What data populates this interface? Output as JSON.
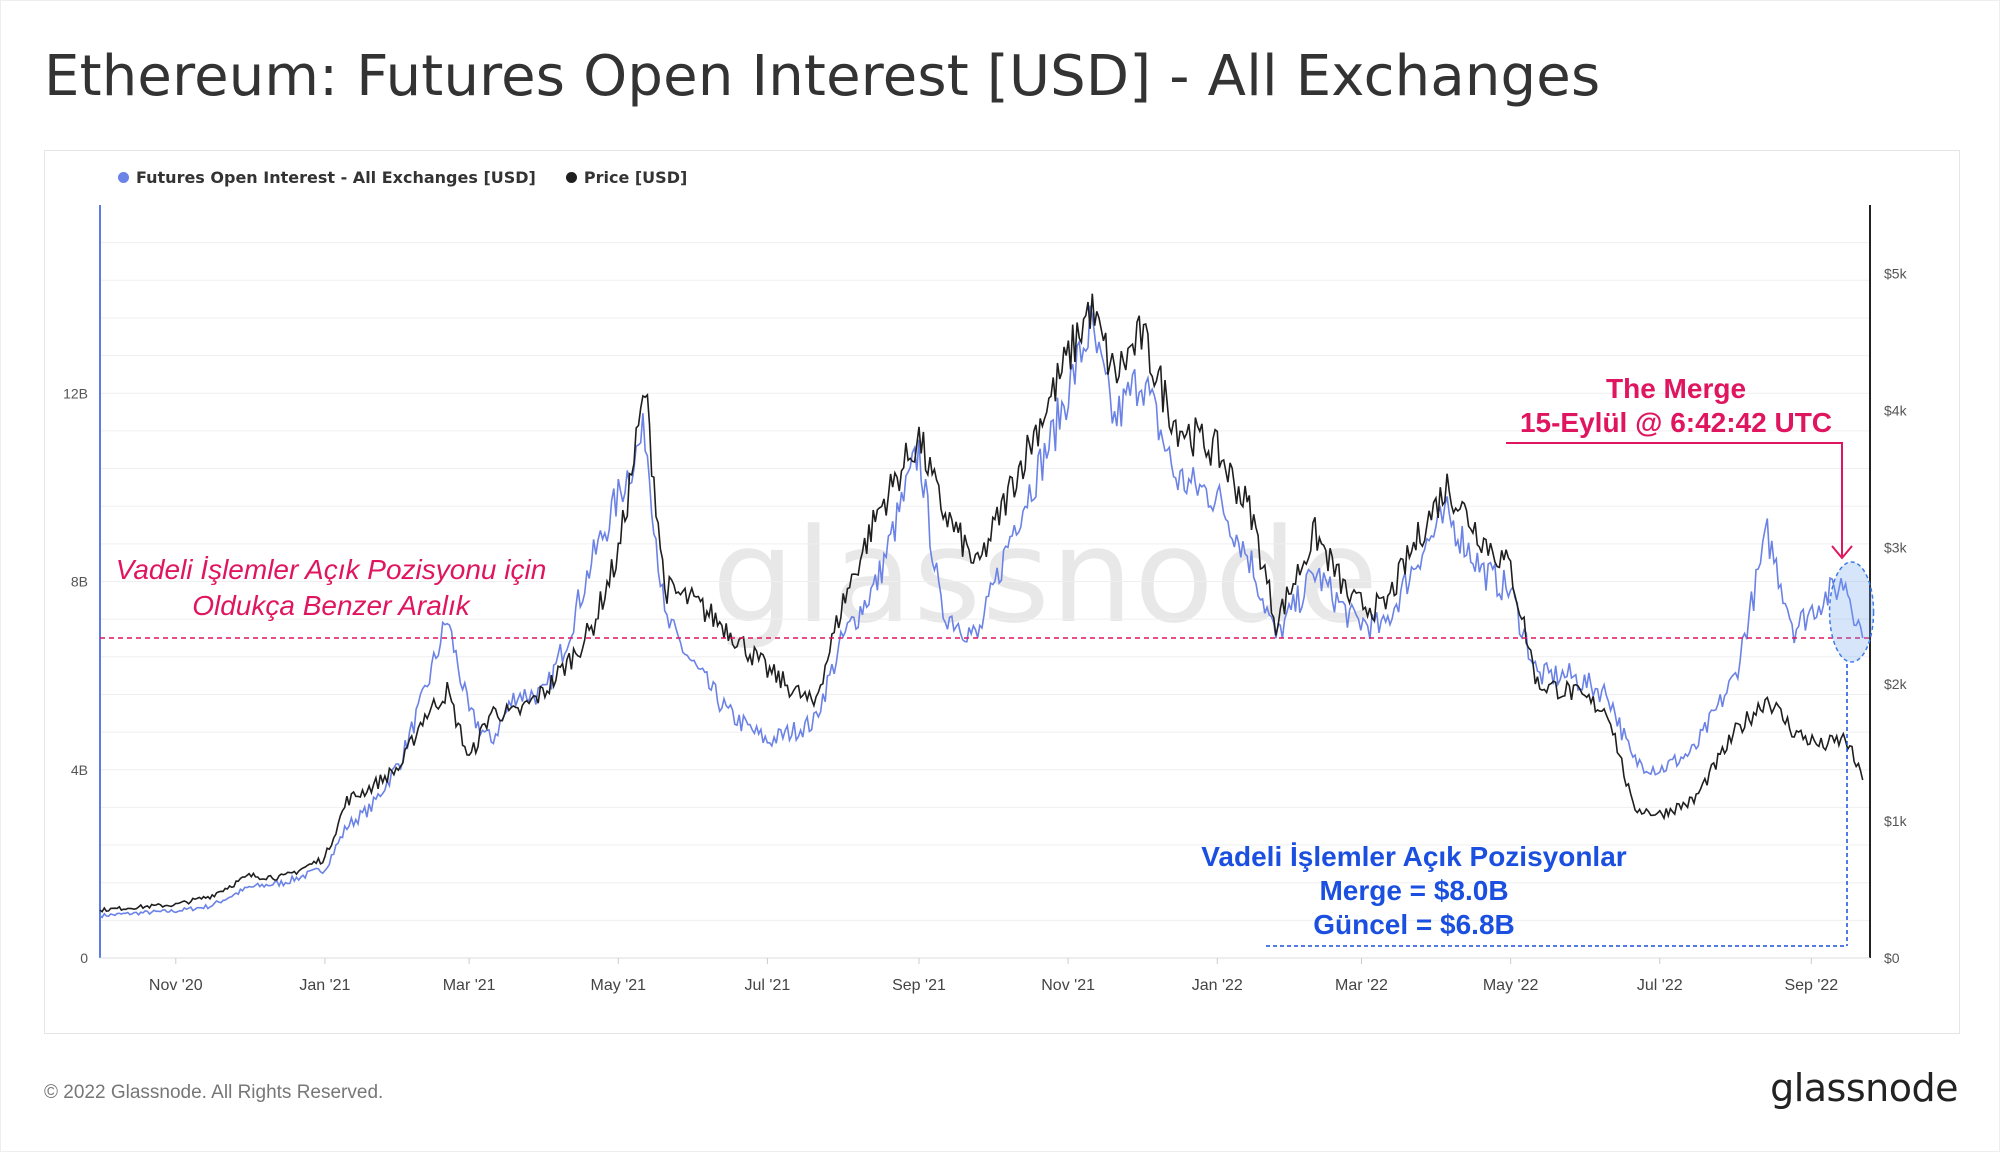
{
  "title": "Ethereum: Futures Open Interest [USD] - All Exchanges",
  "legend": [
    {
      "label": "Futures Open Interest - All Exchanges [USD]",
      "color": "#6b82e6"
    },
    {
      "label": "Price [USD]",
      "color": "#1f1f1f"
    }
  ],
  "watermark": "glassnode",
  "footer": {
    "copyright": "© 2022 Glassnode. All Rights Reserved.",
    "logo": "glassnode"
  },
  "annotations": {
    "range_line1": "Vadeli İşlemler Açık Pozisyonu için",
    "range_line2": "Oldukça Benzer Aralık",
    "merge_line1": "The Merge",
    "merge_line2": "15-Eylül @ 6:42:42 UTC",
    "oi_line1": "Vadeli İşlemler Açık Pozisyonlar",
    "oi_line2": "Merge = $8.0B",
    "oi_line3": "Güncel = $6.8B"
  },
  "chart_data": {
    "type": "line",
    "x_ticks": [
      "Nov '20",
      "Jan '21",
      "Mar '21",
      "May '21",
      "Jul '21",
      "Sep '21",
      "Nov '21",
      "Jan '22",
      "Mar '22",
      "May '22",
      "Jul '22",
      "Sep '22"
    ],
    "y_left_ticks": [
      "0",
      "4B",
      "8B",
      "12B"
    ],
    "y_right_ticks": [
      "$0",
      "$1k",
      "$2k",
      "$3k",
      "$4k",
      "$5k"
    ],
    "y_left_range": [
      0,
      16000000000
    ],
    "y_right_range": [
      0,
      5500
    ],
    "reference_line_oi": 6800000000,
    "merge_date": "2022-09-15",
    "series": [
      {
        "name": "Futures Open Interest - All Exchanges [USD]",
        "axis": "left",
        "color": "#6b82e6",
        "points": [
          [
            "2020-10-01",
            900000000.0
          ],
          [
            "2020-10-15",
            950000000.0
          ],
          [
            "2020-11-01",
            1000000000.0
          ],
          [
            "2020-11-15",
            1100000000.0
          ],
          [
            "2020-12-01",
            1500000000.0
          ],
          [
            "2020-12-15",
            1600000000.0
          ],
          [
            "2021-01-01",
            1900000000.0
          ],
          [
            "2021-01-10",
            2800000000.0
          ],
          [
            "2021-01-20",
            3200000000.0
          ],
          [
            "2021-02-01",
            4200000000.0
          ],
          [
            "2021-02-10",
            5500000000.0
          ],
          [
            "2021-02-20",
            7200000000.0
          ],
          [
            "2021-03-01",
            5200000000.0
          ],
          [
            "2021-03-10",
            4600000000.0
          ],
          [
            "2021-03-20",
            5600000000.0
          ],
          [
            "2021-04-01",
            5600000000.0
          ],
          [
            "2021-04-10",
            6800000000.0
          ],
          [
            "2021-04-20",
            8400000000.0
          ],
          [
            "2021-05-01",
            9800000000.0
          ],
          [
            "2021-05-12",
            11200000000.0
          ],
          [
            "2021-05-20",
            7200000000.0
          ],
          [
            "2021-06-01",
            6200000000.0
          ],
          [
            "2021-06-15",
            5200000000.0
          ],
          [
            "2021-07-01",
            4600000000.0
          ],
          [
            "2021-07-20",
            5000000000.0
          ],
          [
            "2021-08-01",
            6800000000.0
          ],
          [
            "2021-08-15",
            8000000000.0
          ],
          [
            "2021-09-01",
            10800000000.0
          ],
          [
            "2021-09-10",
            7400000000.0
          ],
          [
            "2021-09-25",
            6800000000.0
          ],
          [
            "2021-10-10",
            9200000000.0
          ],
          [
            "2021-10-25",
            11000000000.0
          ],
          [
            "2021-11-10",
            13400000000.0
          ],
          [
            "2021-11-20",
            11400000000.0
          ],
          [
            "2021-12-01",
            12400000000.0
          ],
          [
            "2021-12-15",
            10200000000.0
          ],
          [
            "2022-01-01",
            9800000000.0
          ],
          [
            "2022-01-15",
            8400000000.0
          ],
          [
            "2022-01-25",
            6800000000.0
          ],
          [
            "2022-02-10",
            8200000000.0
          ],
          [
            "2022-02-25",
            7200000000.0
          ],
          [
            "2022-03-10",
            7000000000.0
          ],
          [
            "2022-03-25",
            8600000000.0
          ],
          [
            "2022-04-05",
            9400000000.0
          ],
          [
            "2022-04-20",
            8200000000.0
          ],
          [
            "2022-05-01",
            7800000000.0
          ],
          [
            "2022-05-12",
            6000000000.0
          ],
          [
            "2022-05-25",
            6000000000.0
          ],
          [
            "2022-06-10",
            5600000000.0
          ],
          [
            "2022-06-20",
            4200000000.0
          ],
          [
            "2022-07-01",
            4000000000.0
          ],
          [
            "2022-07-15",
            4400000000.0
          ],
          [
            "2022-08-01",
            6000000000.0
          ],
          [
            "2022-08-14",
            9000000000.0
          ],
          [
            "2022-08-25",
            7000000000.0
          ],
          [
            "2022-09-05",
            7600000000.0
          ],
          [
            "2022-09-15",
            8000000000.0
          ],
          [
            "2022-09-22",
            6800000000.0
          ]
        ]
      },
      {
        "name": "Price [USD]",
        "axis": "right",
        "color": "#1f1f1f",
        "points": [
          [
            "2020-10-01",
            350
          ],
          [
            "2020-10-15",
            370
          ],
          [
            "2020-11-01",
            390
          ],
          [
            "2020-11-15",
            450
          ],
          [
            "2020-12-01",
            600
          ],
          [
            "2020-12-15",
            590
          ],
          [
            "2021-01-01",
            730
          ],
          [
            "2021-01-10",
            1150
          ],
          [
            "2021-01-20",
            1250
          ],
          [
            "2021-02-01",
            1400
          ],
          [
            "2021-02-10",
            1750
          ],
          [
            "2021-02-20",
            1950
          ],
          [
            "2021-03-01",
            1450
          ],
          [
            "2021-03-10",
            1800
          ],
          [
            "2021-03-20",
            1780
          ],
          [
            "2021-04-01",
            1950
          ],
          [
            "2021-04-10",
            2150
          ],
          [
            "2021-04-20",
            2400
          ],
          [
            "2021-05-01",
            2950
          ],
          [
            "2021-05-12",
            4150
          ],
          [
            "2021-05-20",
            2700
          ],
          [
            "2021-06-01",
            2600
          ],
          [
            "2021-06-15",
            2400
          ],
          [
            "2021-07-01",
            2100
          ],
          [
            "2021-07-20",
            1850
          ],
          [
            "2021-08-01",
            2600
          ],
          [
            "2021-08-15",
            3250
          ],
          [
            "2021-09-01",
            3800
          ],
          [
            "2021-09-10",
            3300
          ],
          [
            "2021-09-25",
            2850
          ],
          [
            "2021-10-10",
            3500
          ],
          [
            "2021-10-25",
            4100
          ],
          [
            "2021-11-10",
            4750
          ],
          [
            "2021-11-20",
            4250
          ],
          [
            "2021-12-01",
            4550
          ],
          [
            "2021-12-15",
            3900
          ],
          [
            "2022-01-01",
            3700
          ],
          [
            "2022-01-15",
            3250
          ],
          [
            "2022-01-25",
            2450
          ],
          [
            "2022-02-10",
            3100
          ],
          [
            "2022-02-25",
            2600
          ],
          [
            "2022-03-10",
            2550
          ],
          [
            "2022-03-25",
            3100
          ],
          [
            "2022-04-05",
            3450
          ],
          [
            "2022-04-20",
            3050
          ],
          [
            "2022-05-01",
            2850
          ],
          [
            "2022-05-12",
            2000
          ],
          [
            "2022-05-25",
            1950
          ],
          [
            "2022-06-10",
            1800
          ],
          [
            "2022-06-20",
            1100
          ],
          [
            "2022-07-01",
            1050
          ],
          [
            "2022-07-15",
            1150
          ],
          [
            "2022-08-01",
            1650
          ],
          [
            "2022-08-14",
            1900
          ],
          [
            "2022-08-25",
            1650
          ],
          [
            "2022-09-05",
            1550
          ],
          [
            "2022-09-15",
            1600
          ],
          [
            "2022-09-22",
            1300
          ]
        ]
      }
    ]
  }
}
